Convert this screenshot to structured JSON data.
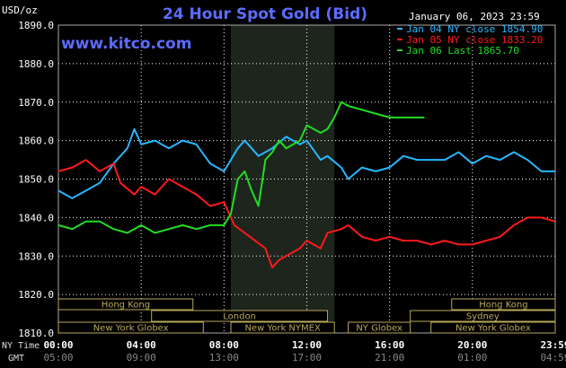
{
  "title": "24 Hour Spot Gold (Bid)",
  "currency_label": "USD/oz",
  "timestamp": "January 06, 2023 23:59",
  "watermark": "www.kitco.com",
  "colors": {
    "background": "#000000",
    "title": "#5c6cff",
    "grid": "#ffffff",
    "text": "#ffffff",
    "jan04": "#29b6ff",
    "jan05": "#ff1a1a",
    "jan06": "#22dd22",
    "session_band": "#b9a85a",
    "session_shade": "#1d251d"
  },
  "legend": [
    {
      "label": "Jan 04 NY close 1854.90",
      "color": "#29b6ff"
    },
    {
      "label": "Jan 05 NY close 1833.20",
      "color": "#ff1a1a"
    },
    {
      "label": "Jan 06 Last 1865.70",
      "color": "#22dd22"
    }
  ],
  "axis_labels": {
    "ny_time": "NY Time",
    "gmt": "GMT"
  },
  "sessions": [
    {
      "name": "Hong Kong",
      "start": "00:00",
      "end": "06:30",
      "row": 0
    },
    {
      "name": "London",
      "start": "04:30",
      "end": "13:00",
      "row": 1
    },
    {
      "name": "New York Globex",
      "start": "00:00",
      "end": "07:00",
      "row": 2
    },
    {
      "name": "New York NYMEX",
      "start": "08:20",
      "end": "13:20",
      "row": 2
    },
    {
      "name": "NY Globex",
      "start": "14:00",
      "end": "17:00",
      "row": 2
    },
    {
      "name": "Hong Kong",
      "start": "19:00",
      "end": "24:00",
      "row": 0
    },
    {
      "name": "Sydney",
      "start": "17:00",
      "end": "24:00",
      "row": 1
    },
    {
      "name": "New York Globex",
      "start": "18:00",
      "end": "24:00",
      "row": 2
    }
  ],
  "chart_data": {
    "type": "line",
    "title": "24 Hour Spot Gold (Bid)",
    "ylabel": "USD/oz",
    "ylim": [
      1810,
      1890
    ],
    "yticks": [
      "1890.0",
      "1880.0",
      "1870.0",
      "1860.0",
      "1850.0",
      "1840.0",
      "1830.0",
      "1820.0",
      "1810.0"
    ],
    "xlim": [
      0,
      24
    ],
    "xticks": [
      "00:00",
      "04:00",
      "08:00",
      "12:00",
      "16:00",
      "20:00",
      "23:59"
    ],
    "xticks_gmt": [
      "05:00",
      "09:00",
      "13:00",
      "17:00",
      "21:00",
      "01:00",
      "04:59"
    ],
    "shaded_region": [
      "08:20",
      "13:20"
    ],
    "series": [
      {
        "name": "Jan 04 NY close 1854.90",
        "color": "#29b6ff",
        "x": [
          "00:00",
          "00:40",
          "01:20",
          "02:00",
          "02:40",
          "03:20",
          "03:40",
          "04:00",
          "04:40",
          "05:20",
          "06:00",
          "06:40",
          "07:20",
          "08:00",
          "08:40",
          "09:00",
          "09:40",
          "10:20",
          "11:00",
          "11:40",
          "12:00",
          "12:40",
          "13:00",
          "13:40",
          "14:00",
          "14:40",
          "15:20",
          "16:00",
          "16:40",
          "17:20",
          "18:00",
          "18:40",
          "19:20",
          "20:00",
          "20:40",
          "21:20",
          "22:00",
          "22:40",
          "23:20",
          "23:59"
        ],
        "y": [
          1847,
          1845,
          1847,
          1849,
          1854,
          1858,
          1863,
          1859,
          1860,
          1858,
          1860,
          1859,
          1854,
          1852,
          1858,
          1860,
          1856,
          1858,
          1861,
          1859,
          1860,
          1855,
          1856,
          1853,
          1850,
          1853,
          1852,
          1853,
          1856,
          1855,
          1855,
          1855,
          1857,
          1854,
          1856,
          1855,
          1857,
          1855,
          1852,
          1852
        ]
      },
      {
        "name": "Jan 05 NY close 1833.20",
        "color": "#ff1a1a",
        "x": [
          "00:00",
          "00:40",
          "01:20",
          "02:00",
          "02:40",
          "03:00",
          "03:40",
          "04:00",
          "04:40",
          "05:20",
          "06:00",
          "06:40",
          "07:20",
          "08:00",
          "08:30",
          "09:00",
          "09:30",
          "10:00",
          "10:20",
          "10:40",
          "11:00",
          "11:40",
          "12:00",
          "12:40",
          "13:00",
          "13:40",
          "14:00",
          "14:40",
          "15:20",
          "16:00",
          "16:40",
          "17:20",
          "18:00",
          "18:40",
          "19:20",
          "20:00",
          "20:40",
          "21:20",
          "22:00",
          "22:40",
          "23:20",
          "23:59"
        ],
        "y": [
          1852,
          1853,
          1855,
          1852,
          1854,
          1849,
          1846,
          1848,
          1846,
          1850,
          1848,
          1846,
          1843,
          1844,
          1838,
          1836,
          1834,
          1832,
          1827,
          1829,
          1830,
          1832,
          1834,
          1832,
          1836,
          1837,
          1838,
          1835,
          1834,
          1835,
          1834,
          1834,
          1833,
          1834,
          1833,
          1833,
          1834,
          1835,
          1838,
          1840,
          1840,
          1839
        ]
      },
      {
        "name": "Jan 06 Last 1865.70",
        "color": "#22dd22",
        "x": [
          "00:00",
          "00:40",
          "01:20",
          "02:00",
          "02:40",
          "03:20",
          "04:00",
          "04:40",
          "05:20",
          "06:00",
          "06:40",
          "07:20",
          "08:00",
          "08:20",
          "08:40",
          "09:00",
          "09:20",
          "09:40",
          "10:00",
          "10:20",
          "10:40",
          "11:00",
          "11:40",
          "12:00",
          "12:40",
          "13:00",
          "13:20",
          "13:40",
          "14:00",
          "14:40",
          "15:20",
          "16:00",
          "16:40",
          "17:20",
          "17:40"
        ],
        "y": [
          1838,
          1837,
          1839,
          1839,
          1837,
          1836,
          1838,
          1836,
          1837,
          1838,
          1837,
          1838,
          1838,
          1841,
          1850,
          1852,
          1847,
          1843,
          1855,
          1857,
          1860,
          1858,
          1860,
          1864,
          1862,
          1863,
          1866,
          1870,
          1869,
          1868,
          1867,
          1866,
          1866,
          1866,
          1866
        ]
      }
    ]
  }
}
